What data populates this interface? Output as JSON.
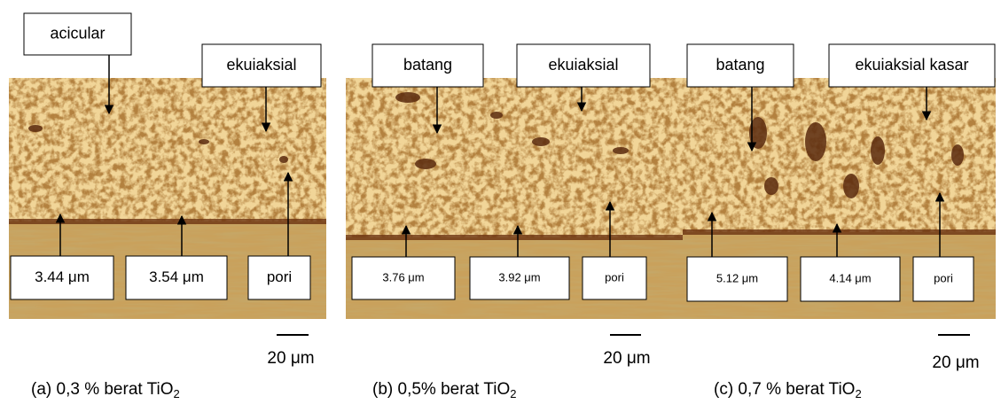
{
  "panels": [
    {
      "labels": [
        "acicular",
        "ekuiaksial",
        "3.44 μm",
        "3.54 μm",
        "pori"
      ],
      "scale_bar": "20 μm",
      "caption": {
        "text": "(a) 0,3 %  berat TiO",
        "subscript": "2"
      }
    },
    {
      "labels": [
        "batang",
        "ekuiaksial",
        "3.76 μm",
        "3.92 μm",
        "pori"
      ],
      "scale_bar": "20 μm",
      "caption": {
        "text": "(b) 0,5%  berat TiO",
        "subscript": "2"
      }
    },
    {
      "labels": [
        "batang",
        "ekuiaksial kasar",
        "5.12 μm",
        "4.14 μm",
        "pori"
      ],
      "scale_bar": "20 μm",
      "caption": {
        "text": "(c) 0,7 %  berat TiO",
        "subscript": "2"
      }
    }
  ]
}
